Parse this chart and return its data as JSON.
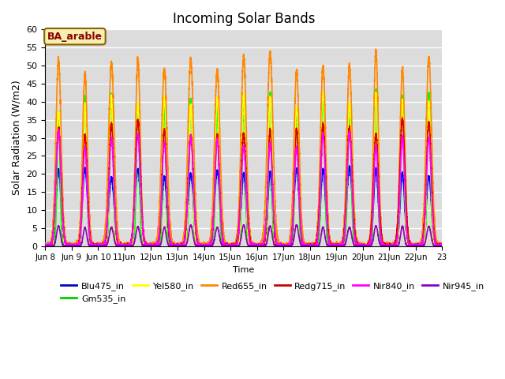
{
  "title": "Incoming Solar Bands",
  "xlabel": "Time",
  "ylabel": "Solar Radiation (W/m2)",
  "ylim": [
    0,
    60
  ],
  "background_color": "#e8e8e8",
  "plot_bg": "#dcdcdc",
  "annotation_text": "BA_arable",
  "annotation_bg": "#f5f0b0",
  "annotation_border": "#8b6000",
  "n_days": 15,
  "day_start": 8,
  "series": [
    {
      "name": "Blu475_in",
      "color": "#0000ff",
      "peak": 22.0,
      "sigma": 0.09,
      "legend_color": "#0000cc"
    },
    {
      "name": "Gm535_in",
      "color": "#00ff00",
      "peak": 43.5,
      "sigma": 0.06,
      "legend_color": "#00cc00"
    },
    {
      "name": "Yel580_in",
      "color": "#ffff00",
      "peak": 43.0,
      "sigma": 0.08,
      "legend_color": "#ffff00"
    },
    {
      "name": "Red655_in",
      "color": "#ff8800",
      "peak": 55.0,
      "sigma": 0.1,
      "legend_color": "#ff8800"
    },
    {
      "name": "Redg715_in",
      "color": "#dd0000",
      "peak": 35.5,
      "sigma": 0.09,
      "legend_color": "#cc0000"
    },
    {
      "name": "Nir840_in",
      "color": "#ff00ff",
      "peak": 32.0,
      "sigma": 0.09,
      "legend_color": "#ff00ff"
    },
    {
      "name": "Nir945_in",
      "color": "#9900bb",
      "peak": 6.0,
      "sigma": 0.07,
      "legend_color": "#8800cc"
    }
  ],
  "legend_ncol": 6,
  "legend_fontsize": 8
}
